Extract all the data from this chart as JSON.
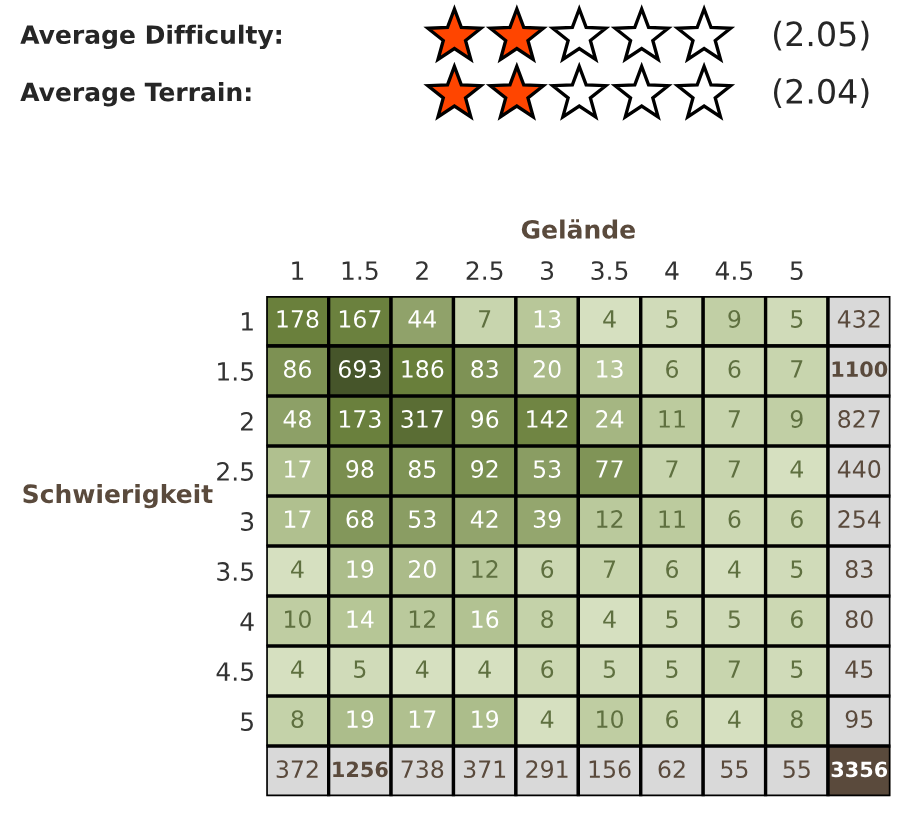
{
  "chart_data": {
    "type": "heatmap",
    "data_labels": true,
    "xlabel": "Gelände",
    "ylabel": "Schwierigkeit",
    "annotations": [
      "Average Difficulty:",
      "(2.05)",
      "Average Terrain:",
      "(2.04)"
    ],
    "categories": [
      "1",
      "1.5",
      "2",
      "2.5",
      "3",
      "3.5",
      "4",
      "4.5",
      "5",
      null
    ],
    "y_categories": [
      "1",
      "1.5",
      "2",
      "2.5",
      "3",
      "3.5",
      "4",
      "4.5",
      "5",
      null
    ],
    "cells": [
      [
        178,
        167,
        44,
        7,
        13,
        4,
        5,
        9,
        5,
        432
      ],
      [
        86,
        693,
        186,
        83,
        20,
        13,
        6,
        6,
        7,
        1100
      ],
      [
        48,
        173,
        317,
        96,
        142,
        24,
        11,
        7,
        9,
        827
      ],
      [
        17,
        98,
        85,
        92,
        53,
        77,
        7,
        7,
        4,
        440
      ],
      [
        17,
        68,
        53,
        42,
        39,
        12,
        11,
        6,
        6,
        254
      ],
      [
        4,
        19,
        20,
        12,
        6,
        7,
        6,
        4,
        5,
        83
      ],
      [
        10,
        14,
        12,
        16,
        8,
        4,
        5,
        5,
        6,
        80
      ],
      [
        4,
        5,
        4,
        4,
        6,
        5,
        5,
        7,
        5,
        45
      ],
      [
        8,
        19,
        17,
        19,
        4,
        10,
        6,
        4,
        8,
        95
      ],
      [
        372,
        1256,
        738,
        371,
        291,
        156,
        62,
        55,
        55,
        3356
      ]
    ]
  }
}
